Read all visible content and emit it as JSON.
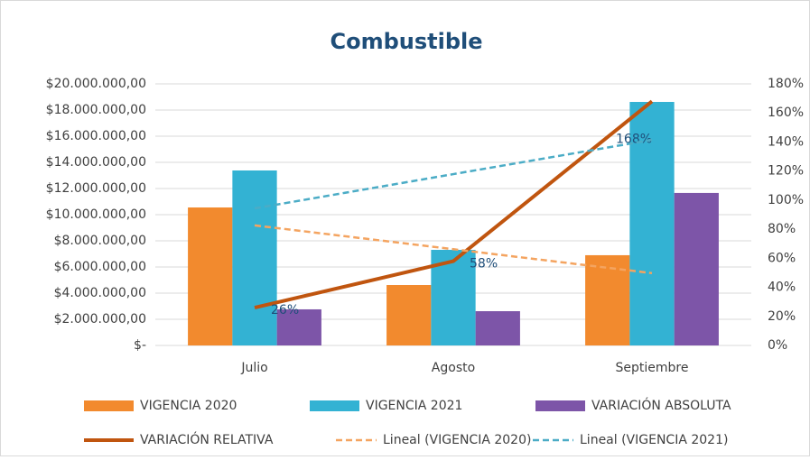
{
  "chart_data": {
    "type": "bar",
    "title": "Combustible",
    "categories": [
      "Julio",
      "Agosto",
      "Septiembre"
    ],
    "series": [
      {
        "name": "VIGENCIA 2020",
        "type": "bar",
        "color": "#F28A2E",
        "values": [
          10550000,
          4620000,
          6900000
        ]
      },
      {
        "name": "VIGENCIA 2021",
        "type": "bar",
        "color": "#33B2D3",
        "values": [
          13380000,
          7310000,
          18620000
        ]
      },
      {
        "name": "VARIACIÓN ABSOLUTA",
        "type": "bar",
        "color": "#7D55A8",
        "values": [
          2760000,
          2620000,
          11660000
        ]
      },
      {
        "name": "VARIACIÓN RELATIVA",
        "type": "line",
        "axis": "y2",
        "color": "#C0550F",
        "values": [
          26,
          58,
          168
        ],
        "value_labels": [
          "26%",
          "58%",
          "168%"
        ]
      },
      {
        "name": "Lineal (VIGENCIA 2020)",
        "type": "line",
        "style": "dashed",
        "color": "#F4A460",
        "values": [
          9180000,
          7360000,
          5530000
        ]
      },
      {
        "name": "Lineal (VIGENCIA 2021)",
        "type": "line",
        "style": "dashed",
        "color": "#4BACC6",
        "values": [
          10480000,
          13100000,
          15720000
        ]
      }
    ],
    "ylim": [
      0,
      20000000
    ],
    "yticks": [
      {
        "value": 0,
        "label": "$-"
      },
      {
        "value": 2000000,
        "label": "$2.000.000,00"
      },
      {
        "value": 4000000,
        "label": "$4.000.000,00"
      },
      {
        "value": 6000000,
        "label": "$6.000.000,00"
      },
      {
        "value": 8000000,
        "label": "$8.000.000,00"
      },
      {
        "value": 10000000,
        "label": "$10.000.000,00"
      },
      {
        "value": 12000000,
        "label": "$12.000.000,00"
      },
      {
        "value": 14000000,
        "label": "$14.000.000,00"
      },
      {
        "value": 16000000,
        "label": "$16.000.000,00"
      },
      {
        "value": 18000000,
        "label": "$18.000.000,00"
      },
      {
        "value": 20000000,
        "label": "$20.000.000,00"
      }
    ],
    "y2lim": [
      0,
      180
    ],
    "y2ticks": [
      {
        "value": 0,
        "label": "0%"
      },
      {
        "value": 20,
        "label": "20%"
      },
      {
        "value": 40,
        "label": "40%"
      },
      {
        "value": 60,
        "label": "60%"
      },
      {
        "value": 80,
        "label": "80%"
      },
      {
        "value": 100,
        "label": "100%"
      },
      {
        "value": 120,
        "label": "120%"
      },
      {
        "value": 140,
        "label": "140%"
      },
      {
        "value": 160,
        "label": "160%"
      },
      {
        "value": 180,
        "label": "180%"
      }
    ],
    "grid": true
  }
}
